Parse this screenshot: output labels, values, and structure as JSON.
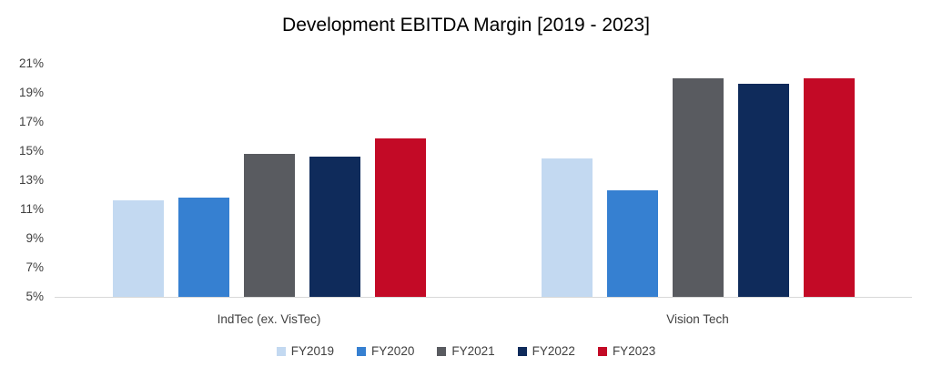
{
  "title": "Development EBITDA Margin [2019 - 2023]",
  "chart_data": {
    "type": "bar",
    "title": "Development EBITDA Margin [2019 - 2023]",
    "categories": [
      "IndTec (ex. VisTec)",
      "Vision Tech"
    ],
    "series": [
      {
        "name": "FY2019",
        "color": "#C3D9F1",
        "values": [
          11.6,
          14.5
        ]
      },
      {
        "name": "FY2020",
        "color": "#3680D1",
        "values": [
          11.8,
          12.3
        ]
      },
      {
        "name": "FY2021",
        "color": "#595B60",
        "values": [
          14.8,
          20.0
        ]
      },
      {
        "name": "FY2022",
        "color": "#0F2B5B",
        "values": [
          14.6,
          19.6
        ]
      },
      {
        "name": "FY2023",
        "color": "#C30A26",
        "values": [
          15.9,
          20.0
        ]
      }
    ],
    "xlabel": "",
    "ylabel": "",
    "ylim": [
      5,
      21
    ],
    "ytick_step": 2,
    "ytick_labels": [
      "5%",
      "7%",
      "9%",
      "11%",
      "13%",
      "15%",
      "17%",
      "19%",
      "21%"
    ],
    "grid": false,
    "legend_position": "bottom"
  },
  "style": {
    "axis_line_color": "#d9d9d9",
    "text_color": "#404040",
    "title_color": "#000000"
  }
}
